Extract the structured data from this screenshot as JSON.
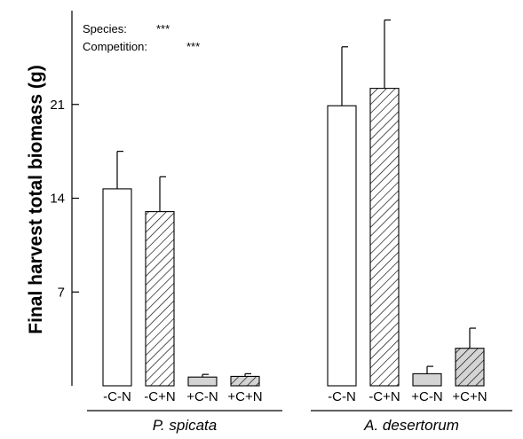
{
  "chart_data": {
    "type": "bar",
    "ylabel": "Final harvest total biomass (g)",
    "xlabel": "",
    "ylim": [
      0,
      28
    ],
    "yticks": [
      7,
      14,
      21
    ],
    "annotations": [
      {
        "label": "Species:",
        "value": "***"
      },
      {
        "label": "Competition:",
        "value": "***"
      }
    ],
    "groups": [
      {
        "name": "P. spicata",
        "bars": [
          {
            "label": "-C-N",
            "value": 14.7,
            "error": 2.8,
            "fill": "white"
          },
          {
            "label": "-C+N",
            "value": 13.0,
            "error": 2.6,
            "fill": "hatch"
          },
          {
            "label": "+C-N",
            "value": 0.65,
            "error": 0.2,
            "fill": "gray"
          },
          {
            "label": "+C+N",
            "value": 0.7,
            "error": 0.2,
            "fill": "hatch-gray"
          }
        ]
      },
      {
        "name": "A. desertorum",
        "bars": [
          {
            "label": "-C-N",
            "value": 20.9,
            "error": 4.4,
            "fill": "white"
          },
          {
            "label": "-C+N",
            "value": 22.2,
            "error": 5.1,
            "fill": "hatch"
          },
          {
            "label": "+C-N",
            "value": 0.9,
            "error": 0.55,
            "fill": "gray"
          },
          {
            "label": "+C+N",
            "value": 2.8,
            "error": 1.5,
            "fill": "hatch-gray"
          }
        ]
      }
    ],
    "colors": {
      "white": "#ffffff",
      "gray": "#d4d4d4",
      "stroke": "#000000"
    }
  }
}
